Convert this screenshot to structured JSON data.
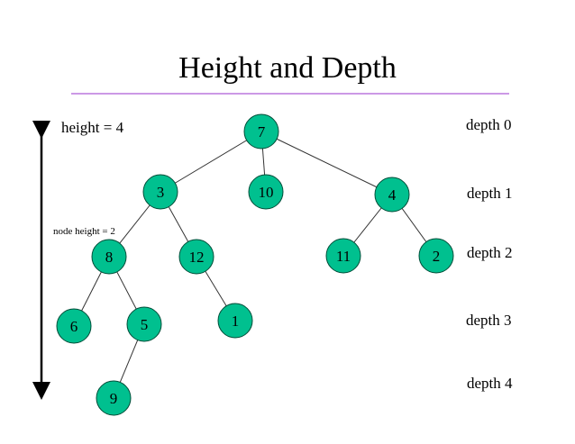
{
  "title": "Height and Depth",
  "height_label": "height = 4",
  "node_height_label": "node height = 2",
  "depth_labels": [
    "depth 0",
    "depth 1",
    "depth 2",
    "depth 3",
    "depth 4"
  ],
  "colors": {
    "node_fill": "#00c08f",
    "node_stroke": "#004d38",
    "title_rule": "#cc99e6"
  },
  "tree": {
    "nodes": [
      {
        "id": "n7",
        "label": "7"
      },
      {
        "id": "n3",
        "label": "3"
      },
      {
        "id": "n10",
        "label": "10"
      },
      {
        "id": "n4",
        "label": "4"
      },
      {
        "id": "n8",
        "label": "8"
      },
      {
        "id": "n12",
        "label": "12"
      },
      {
        "id": "n11",
        "label": "11"
      },
      {
        "id": "n2",
        "label": "2"
      },
      {
        "id": "n6",
        "label": "6"
      },
      {
        "id": "n5",
        "label": "5"
      },
      {
        "id": "n1",
        "label": "1"
      },
      {
        "id": "n9",
        "label": "9"
      }
    ],
    "edges": [
      [
        "n7",
        "n3"
      ],
      [
        "n7",
        "n10"
      ],
      [
        "n7",
        "n4"
      ],
      [
        "n3",
        "n8"
      ],
      [
        "n3",
        "n12"
      ],
      [
        "n4",
        "n11"
      ],
      [
        "n4",
        "n2"
      ],
      [
        "n8",
        "n6"
      ],
      [
        "n8",
        "n5"
      ],
      [
        "n12",
        "n1"
      ],
      [
        "n5",
        "n9"
      ]
    ]
  }
}
